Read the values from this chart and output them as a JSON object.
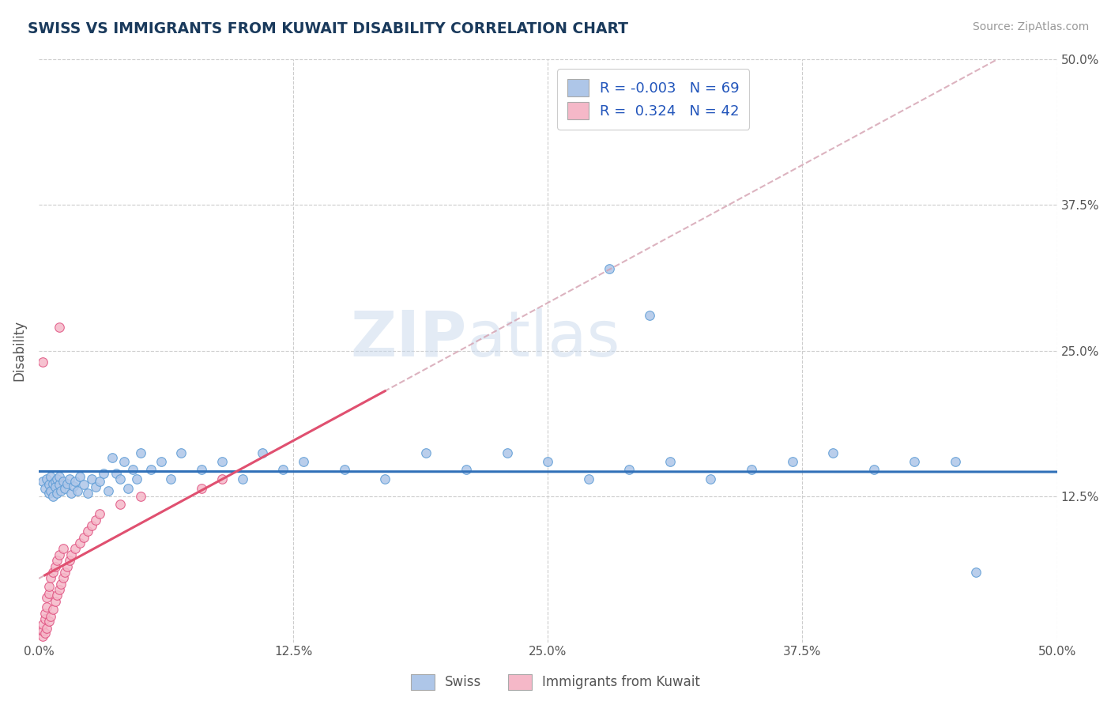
{
  "title": "SWISS VS IMMIGRANTS FROM KUWAIT DISABILITY CORRELATION CHART",
  "source": "Source: ZipAtlas.com",
  "ylabel": "Disability",
  "xlim": [
    0.0,
    0.5
  ],
  "ylim": [
    0.0,
    0.5
  ],
  "xtick_labels": [
    "0.0%",
    "",
    "12.5%",
    "",
    "25.0%",
    "",
    "37.5%",
    "",
    "50.0%"
  ],
  "xtick_vals": [
    0.0,
    0.0625,
    0.125,
    0.1875,
    0.25,
    0.3125,
    0.375,
    0.4375,
    0.5
  ],
  "ytick_labels": [
    "12.5%",
    "25.0%",
    "37.5%",
    "50.0%"
  ],
  "ytick_vals": [
    0.125,
    0.25,
    0.375,
    0.5
  ],
  "swiss_R": -0.003,
  "swiss_N": 69,
  "kuwait_R": 0.324,
  "kuwait_N": 42,
  "swiss_color": "#aec6e8",
  "kuwait_color": "#f5b8c8",
  "swiss_edge_color": "#5b9bd5",
  "kuwait_edge_color": "#e05080",
  "swiss_trend_color": "#3070b8",
  "kuwait_trend_color": "#e05070",
  "kuwait_dashed_color": "#e8a0b0",
  "swiss_scatter": [
    [
      0.002,
      0.138
    ],
    [
      0.003,
      0.132
    ],
    [
      0.004,
      0.14
    ],
    [
      0.005,
      0.135
    ],
    [
      0.005,
      0.128
    ],
    [
      0.006,
      0.142
    ],
    [
      0.006,
      0.13
    ],
    [
      0.007,
      0.136
    ],
    [
      0.007,
      0.125
    ],
    [
      0.008,
      0.138
    ],
    [
      0.008,
      0.133
    ],
    [
      0.009,
      0.14
    ],
    [
      0.009,
      0.128
    ],
    [
      0.01,
      0.135
    ],
    [
      0.01,
      0.142
    ],
    [
      0.011,
      0.13
    ],
    [
      0.012,
      0.138
    ],
    [
      0.013,
      0.132
    ],
    [
      0.014,
      0.136
    ],
    [
      0.015,
      0.14
    ],
    [
      0.016,
      0.128
    ],
    [
      0.017,
      0.134
    ],
    [
      0.018,
      0.138
    ],
    [
      0.019,
      0.13
    ],
    [
      0.02,
      0.142
    ],
    [
      0.022,
      0.135
    ],
    [
      0.024,
      0.128
    ],
    [
      0.026,
      0.14
    ],
    [
      0.028,
      0.133
    ],
    [
      0.03,
      0.138
    ],
    [
      0.032,
      0.145
    ],
    [
      0.034,
      0.13
    ],
    [
      0.036,
      0.158
    ],
    [
      0.038,
      0.145
    ],
    [
      0.04,
      0.14
    ],
    [
      0.042,
      0.155
    ],
    [
      0.044,
      0.132
    ],
    [
      0.046,
      0.148
    ],
    [
      0.048,
      0.14
    ],
    [
      0.05,
      0.162
    ],
    [
      0.055,
      0.148
    ],
    [
      0.06,
      0.155
    ],
    [
      0.065,
      0.14
    ],
    [
      0.07,
      0.162
    ],
    [
      0.08,
      0.148
    ],
    [
      0.09,
      0.155
    ],
    [
      0.1,
      0.14
    ],
    [
      0.11,
      0.162
    ],
    [
      0.12,
      0.148
    ],
    [
      0.13,
      0.155
    ],
    [
      0.15,
      0.148
    ],
    [
      0.17,
      0.14
    ],
    [
      0.19,
      0.162
    ],
    [
      0.21,
      0.148
    ],
    [
      0.23,
      0.162
    ],
    [
      0.25,
      0.155
    ],
    [
      0.27,
      0.14
    ],
    [
      0.29,
      0.148
    ],
    [
      0.31,
      0.155
    ],
    [
      0.33,
      0.14
    ],
    [
      0.35,
      0.148
    ],
    [
      0.37,
      0.155
    ],
    [
      0.39,
      0.162
    ],
    [
      0.41,
      0.148
    ],
    [
      0.43,
      0.155
    ],
    [
      0.45,
      0.155
    ],
    [
      0.46,
      0.06
    ],
    [
      0.3,
      0.28
    ],
    [
      0.28,
      0.32
    ]
  ],
  "kuwait_scatter": [
    [
      0.002,
      0.005
    ],
    [
      0.002,
      0.01
    ],
    [
      0.002,
      0.015
    ],
    [
      0.003,
      0.008
    ],
    [
      0.003,
      0.02
    ],
    [
      0.003,
      0.025
    ],
    [
      0.004,
      0.012
    ],
    [
      0.004,
      0.03
    ],
    [
      0.004,
      0.038
    ],
    [
      0.005,
      0.018
    ],
    [
      0.005,
      0.042
    ],
    [
      0.005,
      0.048
    ],
    [
      0.006,
      0.022
    ],
    [
      0.006,
      0.055
    ],
    [
      0.007,
      0.028
    ],
    [
      0.007,
      0.06
    ],
    [
      0.008,
      0.035
    ],
    [
      0.008,
      0.065
    ],
    [
      0.009,
      0.04
    ],
    [
      0.009,
      0.07
    ],
    [
      0.01,
      0.045
    ],
    [
      0.01,
      0.075
    ],
    [
      0.011,
      0.05
    ],
    [
      0.012,
      0.055
    ],
    [
      0.012,
      0.08
    ],
    [
      0.013,
      0.06
    ],
    [
      0.014,
      0.065
    ],
    [
      0.015,
      0.07
    ],
    [
      0.016,
      0.075
    ],
    [
      0.018,
      0.08
    ],
    [
      0.02,
      0.085
    ],
    [
      0.022,
      0.09
    ],
    [
      0.024,
      0.095
    ],
    [
      0.026,
      0.1
    ],
    [
      0.028,
      0.105
    ],
    [
      0.03,
      0.11
    ],
    [
      0.04,
      0.118
    ],
    [
      0.05,
      0.125
    ],
    [
      0.002,
      0.24
    ],
    [
      0.01,
      0.27
    ],
    [
      0.08,
      0.132
    ],
    [
      0.09,
      0.14
    ]
  ],
  "watermark": "ZIPatlas",
  "watermark2": "atlas"
}
